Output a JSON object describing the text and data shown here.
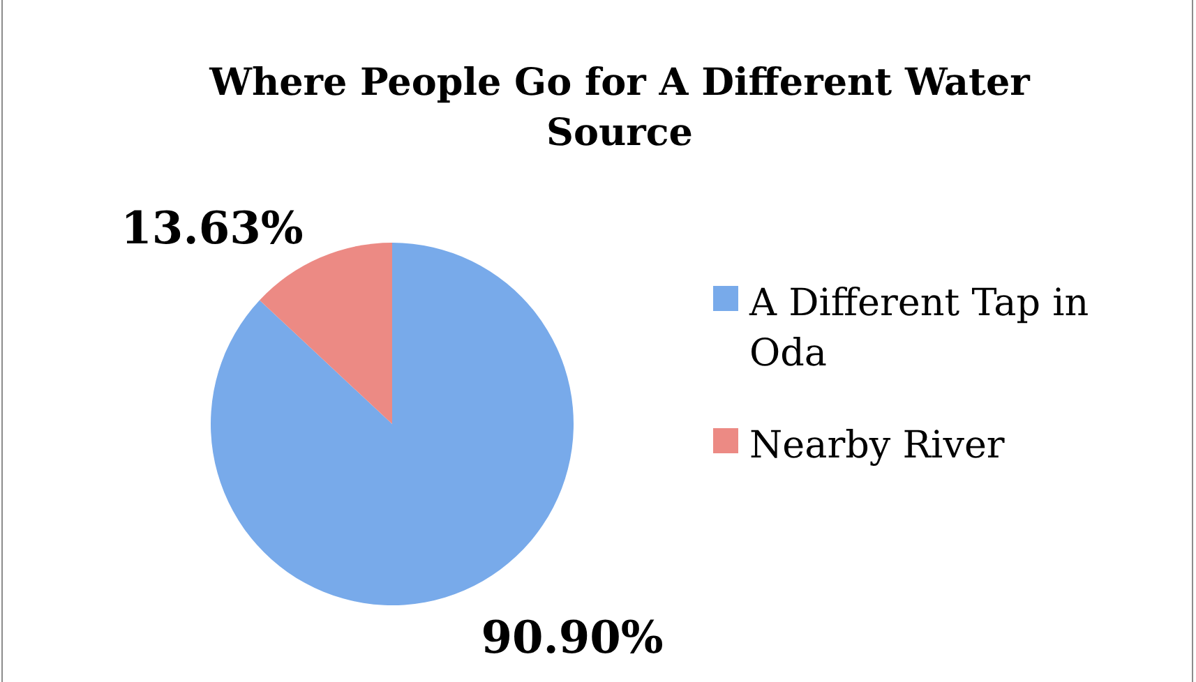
{
  "chart_data": {
    "type": "pie",
    "title": "Where People Go for A Different Water Source",
    "categories": [
      "A Different Tap in Oda",
      "Nearby River"
    ],
    "values": [
      90.9,
      13.63
    ],
    "colors": [
      "#78aaea",
      "#ec8a84"
    ],
    "value_labels": [
      "90.90%",
      "13.63%"
    ],
    "legend": "right"
  }
}
